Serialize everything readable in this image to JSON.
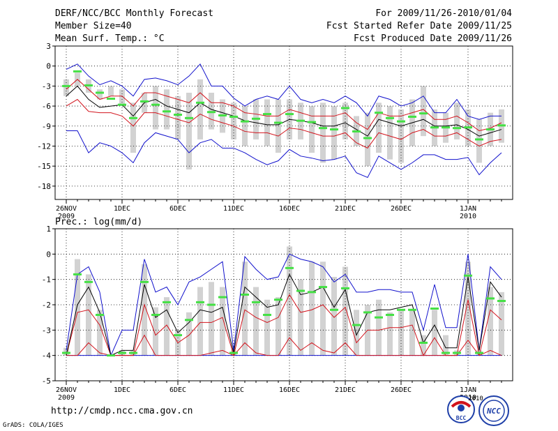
{
  "header": {
    "title": "DERF/NCC/BCC Monthly Forecast",
    "member_size": "Member Size=40",
    "variable1": "Mean Surf. Temp.: °C",
    "period": "For 2009/11/26-2010/01/04",
    "started": "Fcst Started Refer Date 2009/11/25",
    "produced": "Fcst Produced Date 2009/11/26"
  },
  "footer": {
    "url": "http://cmdp.ncc.cma.gov.cn",
    "grads": "GrADS: COLA/IGES",
    "logo_bcc": "BCC",
    "logo_ncc": "NCC",
    "logo_ncc_year": "2010"
  },
  "colors": {
    "box": "#d2d2d2",
    "median": "#000000",
    "quartile": "#d2131c",
    "envelope": "#1010cc",
    "mean": "#44e044",
    "grid": "#000000"
  },
  "chart_data": [
    {
      "type": "box-ensemble-line",
      "title": "",
      "ylabel": "Mean Surf. Temp.: °C",
      "x": [
        "26NOV",
        "27NOV",
        "28NOV",
        "29NOV",
        "30NOV",
        "1DEC",
        "2DEC",
        "3DEC",
        "4DEC",
        "5DEC",
        "6DEC",
        "7DEC",
        "8DEC",
        "9DEC",
        "10DEC",
        "11DEC",
        "12DEC",
        "13DEC",
        "14DEC",
        "15DEC",
        "16DEC",
        "17DEC",
        "18DEC",
        "19DEC",
        "20DEC",
        "21DEC",
        "22DEC",
        "23DEC",
        "24DEC",
        "25DEC",
        "26DEC",
        "27DEC",
        "28DEC",
        "29DEC",
        "30DEC",
        "31DEC",
        "1JAN",
        "2JAN",
        "3JAN",
        "4JAN"
      ],
      "xticks": [
        {
          "i": 0,
          "label": "26NOV",
          "sub": "2009"
        },
        {
          "i": 5,
          "label": "1DEC",
          "sub": ""
        },
        {
          "i": 10,
          "label": "6DEC",
          "sub": ""
        },
        {
          "i": 15,
          "label": "11DEC",
          "sub": ""
        },
        {
          "i": 20,
          "label": "16DEC",
          "sub": ""
        },
        {
          "i": 25,
          "label": "21DEC",
          "sub": ""
        },
        {
          "i": 30,
          "label": "26DEC",
          "sub": ""
        },
        {
          "i": 36,
          "label": "1JAN",
          "sub": "2010"
        }
      ],
      "ylim": [
        -20,
        3
      ],
      "yticks": [
        3,
        0,
        -3,
        -6,
        -9,
        -12,
        -15,
        -18
      ],
      "box_low": [
        -4.5,
        -3,
        -4,
        -5,
        -4.5,
        -6,
        -13,
        -7,
        -9.5,
        -9.5,
        -11,
        -15.5,
        -11,
        -9.5,
        -10,
        -11,
        -12,
        -11,
        -12,
        -13,
        -11,
        -11,
        -13,
        -14.5,
        -14,
        -11,
        -12,
        -15,
        -13,
        -14,
        -14.5,
        -12,
        -10.5,
        -12,
        -11.5,
        -11,
        -12,
        -14.5,
        -12,
        -11.5
      ],
      "box_high": [
        -2,
        -1,
        -2,
        -3.5,
        -3,
        -3.5,
        -5.5,
        -4,
        -3,
        -3.5,
        -4.5,
        -4,
        -2,
        -4,
        -5,
        -5.5,
        -6,
        -5,
        -5,
        -5,
        -5,
        -5.5,
        -6,
        -5.5,
        -6,
        -5.5,
        -7.5,
        -7,
        -5.5,
        -6,
        -6.5,
        -5,
        -3,
        -6.5,
        -7,
        -5.5,
        -6.5,
        -8,
        -7,
        -6.5
      ],
      "median": [
        -4.5,
        -3,
        -5,
        -6.2,
        -6,
        -5.8,
        -7.5,
        -5.5,
        -5,
        -6,
        -6.5,
        -7,
        -5.5,
        -6.5,
        -7,
        -7.5,
        -8.2,
        -8.5,
        -8.8,
        -8.8,
        -8,
        -8.2,
        -8.5,
        -9,
        -9,
        -8.5,
        -9.5,
        -10.5,
        -8,
        -8.5,
        -9,
        -8.5,
        -8,
        -9,
        -9,
        -8.8,
        -9.5,
        -10.5,
        -10,
        -9.5
      ],
      "q_low": [
        -6,
        -5,
        -6.8,
        -7,
        -7,
        -7.5,
        -9,
        -7,
        -7,
        -7.5,
        -8,
        -8.5,
        -7.2,
        -8,
        -8.5,
        -9,
        -9.8,
        -10,
        -10,
        -10.5,
        -9.3,
        -9.5,
        -10,
        -10.5,
        -10.5,
        -10,
        -11.5,
        -12.3,
        -10,
        -10.5,
        -11,
        -10,
        -9.5,
        -10.5,
        -10.5,
        -10,
        -11,
        -12,
        -11.3,
        -11
      ],
      "q_high": [
        -3.5,
        -2,
        -3.5,
        -5,
        -4.5,
        -4.5,
        -6,
        -4,
        -4,
        -4.5,
        -5,
        -5.5,
        -4,
        -5.5,
        -5.5,
        -6,
        -7,
        -7.2,
        -7.5,
        -7.5,
        -6.5,
        -7,
        -7.5,
        -7.5,
        -7.5,
        -7,
        -8.5,
        -9.5,
        -7,
        -7.5,
        -7.5,
        -7,
        -6.5,
        -8,
        -8,
        -7.5,
        -8.5,
        -9.7,
        -9.3,
        -8.5
      ],
      "env_low": [
        -9.7,
        -9.7,
        -13,
        -11.5,
        -12,
        -13,
        -14.5,
        -11.5,
        -10,
        -10.5,
        -11,
        -13,
        -11.5,
        -11,
        -12.3,
        -12.3,
        -13,
        -14,
        -14.8,
        -14.2,
        -12.5,
        -13.5,
        -13.8,
        -14.2,
        -14,
        -13.5,
        -16,
        -16.7,
        -13.5,
        -14.5,
        -15.5,
        -14.5,
        -13.3,
        -13.3,
        -14,
        -14,
        -13.7,
        -16.3,
        -14.5,
        -13
      ],
      "env_high": [
        -0.5,
        0.3,
        -1.5,
        -2.8,
        -2.2,
        -3,
        -4.5,
        -2,
        -1.8,
        -2.2,
        -2.8,
        -1.5,
        0.3,
        -3,
        -3,
        -4.8,
        -6,
        -5,
        -4.5,
        -5,
        -3,
        -5,
        -5.5,
        -5,
        -5.5,
        -4.5,
        -5.5,
        -7.5,
        -4.5,
        -5,
        -6,
        -5.5,
        -4.5,
        -7,
        -7,
        -5,
        -7.5,
        -8,
        -7.5,
        -7.5
      ],
      "mean": [
        -3,
        -0.8,
        -2.9,
        -4,
        -4.9,
        -5.8,
        -7.8,
        -5.3,
        -5.8,
        -6.8,
        -7.3,
        -7.8,
        -5.5,
        -6.9,
        -7.4,
        -7.6,
        -8.3,
        -7.9,
        -7.2,
        -8.5,
        -7.2,
        -8.2,
        -8.4,
        -9.3,
        -9.5,
        -6.3,
        -9.8,
        -10.8,
        -7,
        -7.8,
        -8.3,
        -7.6,
        -7.1,
        -9.2,
        -9.2,
        -9.3,
        -9.2,
        -11,
        -9.5,
        -8.9
      ]
    },
    {
      "type": "box-ensemble-line",
      "title": "",
      "ylabel": "Prec.: log(mm/d)",
      "x": [
        "26NOV",
        "27NOV",
        "28NOV",
        "29NOV",
        "30NOV",
        "1DEC",
        "2DEC",
        "3DEC",
        "4DEC",
        "5DEC",
        "6DEC",
        "7DEC",
        "8DEC",
        "9DEC",
        "10DEC",
        "11DEC",
        "12DEC",
        "13DEC",
        "14DEC",
        "15DEC",
        "16DEC",
        "17DEC",
        "18DEC",
        "19DEC",
        "20DEC",
        "21DEC",
        "22DEC",
        "23DEC",
        "24DEC",
        "25DEC",
        "26DEC",
        "27DEC",
        "28DEC",
        "29DEC",
        "30DEC",
        "31DEC",
        "1JAN",
        "2JAN",
        "3JAN",
        "4JAN"
      ],
      "xticks": [
        {
          "i": 0,
          "label": "26NOV",
          "sub": "2009"
        },
        {
          "i": 5,
          "label": "1DEC",
          "sub": ""
        },
        {
          "i": 10,
          "label": "6DEC",
          "sub": ""
        },
        {
          "i": 15,
          "label": "11DEC",
          "sub": ""
        },
        {
          "i": 20,
          "label": "16DEC",
          "sub": ""
        },
        {
          "i": 25,
          "label": "21DEC",
          "sub": ""
        },
        {
          "i": 30,
          "label": "26DEC",
          "sub": ""
        },
        {
          "i": 36,
          "label": "1JAN",
          "sub": "2010"
        }
      ],
      "ylim": [
        -5,
        1
      ],
      "yticks": [
        1,
        0,
        -1,
        -2,
        -3,
        -4,
        -5
      ],
      "box_low": [
        -4,
        -4,
        -4,
        -4,
        -4,
        -4,
        -4,
        -4,
        -4,
        -4,
        -4,
        -4,
        -4,
        -4,
        -4,
        -4,
        -4,
        -4,
        -4,
        -4,
        -4,
        -4,
        -4,
        -4,
        -4,
        -4,
        -4,
        -4,
        -4,
        -4,
        -4,
        -4,
        -4,
        -4,
        -4,
        -4,
        -4,
        -4,
        -4,
        -4
      ],
      "box_high": [
        -3.7,
        -0.2,
        -0.8,
        -2.2,
        -4,
        -3.8,
        -3.8,
        -0.4,
        -2.1,
        -1.7,
        -3,
        -2.3,
        -1.3,
        -1.1,
        -1.3,
        -3.8,
        -0.3,
        -1.3,
        -1.8,
        -1.7,
        0.3,
        -1,
        -0.3,
        -0.3,
        -0.9,
        -0.5,
        -2.2,
        -2,
        -1.8,
        -2.3,
        -2.2,
        -2.2,
        -3.2,
        -2.2,
        -3.2,
        -3.8,
        -0.3,
        -3.8,
        -1.3,
        -1.5
      ],
      "median": [
        -4,
        -2,
        -1.3,
        -2.3,
        -4,
        -3.8,
        -3.8,
        -1.2,
        -2.5,
        -2.2,
        -3.1,
        -2.7,
        -2.2,
        -2.3,
        -2.1,
        -3.9,
        -1.3,
        -1.7,
        -2.1,
        -2,
        -0.8,
        -1.6,
        -1.5,
        -1.3,
        -2.1,
        -1.4,
        -3.2,
        -2.3,
        -2.2,
        -2.2,
        -2.1,
        -2,
        -3.5,
        -2.8,
        -3.7,
        -3.7,
        -0.9,
        -3.8,
        -1.1,
        -1.7
      ],
      "q_low": [
        -4,
        -4,
        -3.5,
        -3.9,
        -4,
        -4,
        -4,
        -3.2,
        -4,
        -4,
        -4,
        -4,
        -4,
        -3.9,
        -3.8,
        -4,
        -3.5,
        -3.9,
        -4,
        -4,
        -3.3,
        -3.8,
        -3.5,
        -3.8,
        -3.9,
        -3.5,
        -4,
        -4,
        -4,
        -4,
        -4,
        -4,
        -4,
        -4,
        -4,
        -4,
        -3.4,
        -4,
        -3.8,
        -4
      ],
      "q_high": [
        -4,
        -2.3,
        -2.2,
        -2.8,
        -4,
        -4,
        -4,
        -2,
        -3.2,
        -2.8,
        -3.5,
        -3.2,
        -2.7,
        -2.7,
        -2.5,
        -4,
        -2.2,
        -2.5,
        -2.7,
        -2.5,
        -1.6,
        -2.3,
        -2.2,
        -2,
        -2.5,
        -2.1,
        -3.5,
        -3,
        -3,
        -2.9,
        -2.9,
        -2.8,
        -4,
        -3.3,
        -4,
        -4,
        -1.8,
        -4,
        -2.2,
        -2.6
      ],
      "env_low": [
        -4,
        -4,
        -4,
        -4,
        -4,
        -4,
        -4,
        -4,
        -4,
        -4,
        -4,
        -4,
        -4,
        -4,
        -4,
        -4,
        -4,
        -4,
        -4,
        -4,
        -4,
        -4,
        -4,
        -4,
        -4,
        -4,
        -4,
        -4,
        -4,
        -4,
        -4,
        -4,
        -4,
        -4,
        -4,
        -4,
        -4,
        -4,
        -4,
        -4
      ],
      "env_high": [
        -3.8,
        -0.8,
        -0.5,
        -1.5,
        -4,
        -3,
        -3,
        -0.2,
        -1.5,
        -1.3,
        -2,
        -1.1,
        -0.9,
        -0.6,
        -0.3,
        -3.8,
        -0.1,
        -0.6,
        -1,
        -0.9,
        0,
        -0.2,
        -0.3,
        -0.5,
        -1.1,
        -0.8,
        -1.5,
        -1.5,
        -1.4,
        -1.4,
        -1.5,
        -1.5,
        -3,
        -1.2,
        -2.9,
        -2.9,
        0,
        -3.8,
        -0.5,
        -1
      ],
      "mean": [
        -3.9,
        -0.8,
        -1.1,
        -2.4,
        -4,
        -3.9,
        -3.9,
        -1.1,
        -2.4,
        -1.9,
        -3.2,
        -2.6,
        -1.9,
        -2,
        -1.7,
        -3.9,
        -1.6,
        -1.9,
        -2.4,
        -1.8,
        -0.55,
        -1.45,
        -1.5,
        -1.3,
        -2.2,
        -1.35,
        -2.8,
        -2.3,
        -2.5,
        -2.4,
        -2.2,
        -2.2,
        -3.5,
        -2.15,
        -3.9,
        -3.9,
        -0.85,
        -3.9,
        -1.75,
        -1.85
      ]
    }
  ]
}
